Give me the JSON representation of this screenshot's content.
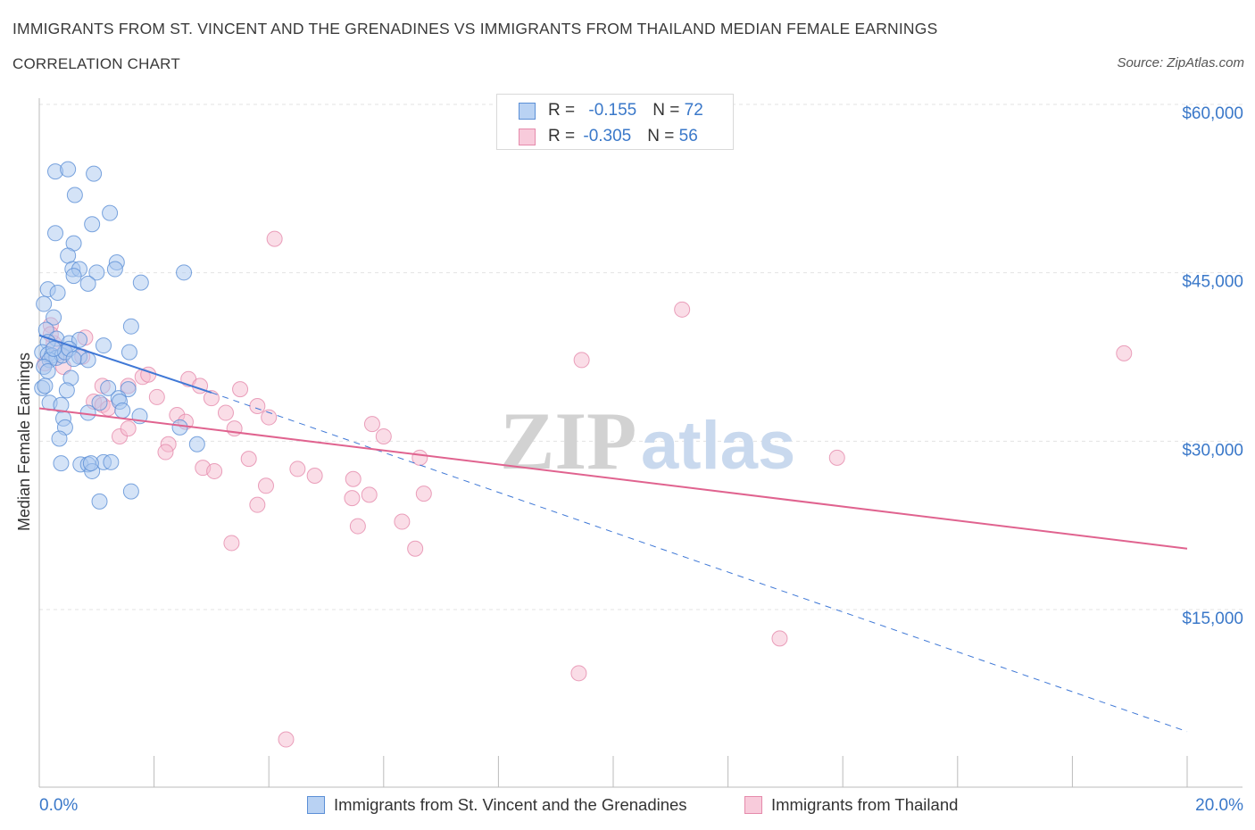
{
  "title": "IMMIGRANTS FROM ST. VINCENT AND THE GRENADINES VS IMMIGRANTS FROM THAILAND MEDIAN FEMALE EARNINGS",
  "subtitle": "CORRELATION CHART",
  "source": "Source: ZipAtlas.com",
  "watermark": {
    "zip": "ZIP",
    "atlas": "atlas"
  },
  "legend": {
    "rows": [
      {
        "r_label": "R = ",
        "r_value": "-0.155",
        "n_label": "N = ",
        "n_value": "72"
      },
      {
        "r_label": "R = ",
        "r_value": "-0.305",
        "n_label": "N = ",
        "n_value": "56"
      }
    ]
  },
  "colors": {
    "series1_fill": "#a9c8f0",
    "series1_stroke": "#5b8fd6",
    "series1_line": "#3f78d6",
    "series2_fill": "#f6bcd0",
    "series2_stroke": "#e58aab",
    "series2_line": "#e0638f",
    "tick_label": "#3a78c9",
    "grid": "#e3e3e3"
  },
  "chart_data": {
    "type": "scatter",
    "xlabel": "",
    "ylabel": "Median Female Earnings",
    "xlim": [
      0,
      20
    ],
    "ylim": [
      0,
      60000
    ],
    "x_tick_labels": [
      "0.0%",
      "20.0%"
    ],
    "y_ticks": [
      15000,
      30000,
      45000,
      60000
    ],
    "y_tick_labels": [
      "$15,000",
      "$30,000",
      "$45,000",
      "$60,000"
    ],
    "grid": true,
    "legend_position": "top-center",
    "series": [
      {
        "name": "Immigrants from St. Vincent and the Grenadines",
        "trend": {
          "x": [
            0,
            3
          ],
          "y": [
            40700,
            35600
          ],
          "extended_to": [
            20,
            5400
          ]
        },
        "points": [
          [
            0.28,
            55300
          ],
          [
            0.5,
            55500
          ],
          [
            0.95,
            55100
          ],
          [
            0.62,
            53200
          ],
          [
            1.23,
            51600
          ],
          [
            0.28,
            49800
          ],
          [
            0.92,
            50600
          ],
          [
            0.6,
            48900
          ],
          [
            0.5,
            47800
          ],
          [
            1.35,
            47200
          ],
          [
            0.58,
            46600
          ],
          [
            0.7,
            46600
          ],
          [
            1.0,
            46300
          ],
          [
            1.32,
            46600
          ],
          [
            2.52,
            46300
          ],
          [
            0.6,
            46000
          ],
          [
            0.85,
            45300
          ],
          [
            1.77,
            45400
          ],
          [
            0.15,
            44800
          ],
          [
            0.32,
            44500
          ],
          [
            0.08,
            43500
          ],
          [
            0.25,
            42300
          ],
          [
            0.12,
            41200
          ],
          [
            1.6,
            41500
          ],
          [
            0.3,
            40400
          ],
          [
            0.15,
            40100
          ],
          [
            0.52,
            40000
          ],
          [
            0.7,
            40300
          ],
          [
            1.12,
            39800
          ],
          [
            0.05,
            39200
          ],
          [
            0.15,
            39000
          ],
          [
            0.22,
            38900
          ],
          [
            0.3,
            38700
          ],
          [
            0.4,
            38900
          ],
          [
            0.45,
            39200
          ],
          [
            0.52,
            39500
          ],
          [
            0.7,
            38800
          ],
          [
            0.85,
            38500
          ],
          [
            0.18,
            38500
          ],
          [
            0.08,
            37900
          ],
          [
            1.57,
            39200
          ],
          [
            0.15,
            37500
          ],
          [
            0.55,
            36900
          ],
          [
            1.2,
            36000
          ],
          [
            1.55,
            35900
          ],
          [
            0.05,
            36000
          ],
          [
            0.48,
            35800
          ],
          [
            1.38,
            35100
          ],
          [
            1.4,
            34800
          ],
          [
            0.18,
            34700
          ],
          [
            0.38,
            34500
          ],
          [
            0.85,
            33800
          ],
          [
            1.05,
            34700
          ],
          [
            1.45,
            34000
          ],
          [
            1.75,
            33500
          ],
          [
            0.42,
            33300
          ],
          [
            0.45,
            32500
          ],
          [
            2.45,
            32500
          ],
          [
            0.35,
            31500
          ],
          [
            2.75,
            31000
          ],
          [
            0.38,
            29300
          ],
          [
            0.72,
            29200
          ],
          [
            0.85,
            29200
          ],
          [
            1.12,
            29400
          ],
          [
            1.25,
            29400
          ],
          [
            0.92,
            28600
          ],
          [
            1.6,
            26800
          ],
          [
            1.05,
            25900
          ],
          [
            0.1,
            36200
          ],
          [
            0.9,
            29300
          ],
          [
            0.25,
            39500
          ],
          [
            0.6,
            38600
          ]
        ]
      },
      {
        "name": "Immigrants from Thailand",
        "trend": {
          "x": [
            0,
            20
          ],
          "y": [
            34200,
            21700
          ]
        },
        "points": [
          [
            0.2,
            41600
          ],
          [
            0.25,
            40000
          ],
          [
            0.8,
            40500
          ],
          [
            0.45,
            39200
          ],
          [
            0.75,
            38800
          ],
          [
            0.1,
            38200
          ],
          [
            0.42,
            37900
          ],
          [
            0.2,
            40800
          ],
          [
            1.1,
            36200
          ],
          [
            1.55,
            36200
          ],
          [
            1.8,
            37000
          ],
          [
            1.9,
            37200
          ],
          [
            2.6,
            36800
          ],
          [
            2.8,
            36200
          ],
          [
            3.5,
            35900
          ],
          [
            0.95,
            34800
          ],
          [
            1.1,
            34500
          ],
          [
            1.2,
            34200
          ],
          [
            2.05,
            35200
          ],
          [
            3.0,
            35100
          ],
          [
            3.8,
            34400
          ],
          [
            2.4,
            33600
          ],
          [
            2.55,
            33000
          ],
          [
            3.25,
            33800
          ],
          [
            3.4,
            32400
          ],
          [
            4.0,
            33400
          ],
          [
            5.8,
            32800
          ],
          [
            6.0,
            31700
          ],
          [
            1.4,
            31700
          ],
          [
            1.55,
            32400
          ],
          [
            2.25,
            31000
          ],
          [
            2.2,
            30300
          ],
          [
            3.65,
            29700
          ],
          [
            4.5,
            28800
          ],
          [
            4.8,
            28200
          ],
          [
            2.85,
            28900
          ],
          [
            3.05,
            28600
          ],
          [
            3.95,
            27300
          ],
          [
            5.47,
            27900
          ],
          [
            5.75,
            26500
          ],
          [
            6.63,
            29800
          ],
          [
            6.7,
            26600
          ],
          [
            3.8,
            25600
          ],
          [
            5.45,
            26200
          ],
          [
            5.55,
            23700
          ],
          [
            6.32,
            24100
          ],
          [
            3.35,
            22200
          ],
          [
            6.55,
            21700
          ],
          [
            4.1,
            49300
          ],
          [
            11.2,
            43000
          ],
          [
            9.45,
            38500
          ],
          [
            18.9,
            39100
          ],
          [
            13.9,
            29800
          ],
          [
            12.9,
            13700
          ],
          [
            9.4,
            10600
          ],
          [
            4.3,
            4700
          ]
        ]
      }
    ]
  }
}
